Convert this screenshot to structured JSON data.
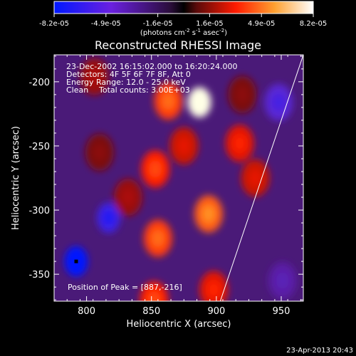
{
  "chart_data": {
    "type": "heatmap",
    "title": "Reconstructed RHESSI Image",
    "xlabel": "Heliocentric X (arcsec)",
    "ylabel": "Heliocentric Y (arcsec)",
    "xlim": [
      775,
      967
    ],
    "ylim": [
      -371,
      -179
    ],
    "xticks": [
      800,
      850,
      900,
      950
    ],
    "yticks": [
      -200,
      -250,
      -300,
      -350
    ],
    "colorbar": {
      "ticks": [
        "-8.2e-05",
        "-4.9e-05",
        "-1.6e-05",
        "1.6e-05",
        "4.9e-05",
        "8.2e-05"
      ],
      "unit_parts": [
        "(photons cm",
        "-2",
        " s",
        "-1",
        " asec",
        "-2",
        ")"
      ],
      "range": [
        -8.2e-05,
        8.2e-05
      ]
    },
    "annotations": {
      "line1": "23-Dec-2002 16:15:02.000 to 16:20:24.000",
      "line2": "Detectors: 4F 5F 6F 7F 8F, Att 0",
      "line3": "Energy Range: 12.0 - 25.0 keV",
      "line4_a": "Clean",
      "line4_b": "Total counts: 3.00E+03",
      "peak": "Position of Peak = [887,-216]"
    },
    "peak_position": [
      887,
      -216
    ],
    "limb_line": [
      [
        903,
        -371
      ],
      [
        967,
        -179
      ]
    ],
    "features": [
      {
        "x": 792,
        "y": -340,
        "value": -8.2e-05
      },
      {
        "x": 817,
        "y": -306,
        "value": -6.5e-05
      },
      {
        "x": 948,
        "y": -216,
        "value": -5.5e-05
      },
      {
        "x": 951,
        "y": -355,
        "value": -4e-05
      },
      {
        "x": 887,
        "y": -216,
        "value": 8.2e-05
      },
      {
        "x": 863,
        "y": -215,
        "value": 5e-05
      },
      {
        "x": 853,
        "y": -268,
        "value": 4.5e-05
      },
      {
        "x": 855,
        "y": -322,
        "value": 5e-05
      },
      {
        "x": 894,
        "y": -303,
        "value": 5.5e-05
      },
      {
        "x": 852,
        "y": -370,
        "value": 4.5e-05
      },
      {
        "x": 918,
        "y": -248,
        "value": 4e-05
      },
      {
        "x": 898,
        "y": -362,
        "value": 4e-05
      },
      {
        "x": 930,
        "y": -275,
        "value": 3.5e-05
      },
      {
        "x": 875,
        "y": -250,
        "value": 3.5e-05
      },
      {
        "x": 806,
        "y": -196,
        "value": 2.5e-05
      },
      {
        "x": 810,
        "y": -255,
        "value": 2e-05
      },
      {
        "x": 832,
        "y": -290,
        "value": 2.5e-05
      },
      {
        "x": 920,
        "y": -210,
        "value": 2e-05
      }
    ]
  },
  "footer": {
    "timestamp": "23-Apr-2013 20:43"
  }
}
